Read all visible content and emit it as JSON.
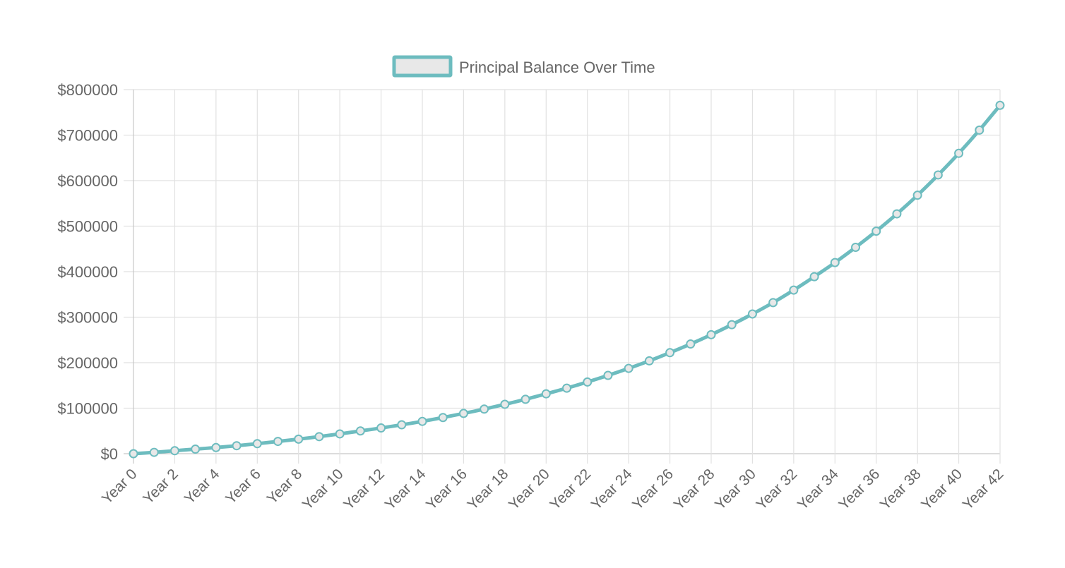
{
  "chart_data": {
    "type": "line",
    "title": "",
    "xlabel": "",
    "ylabel": "",
    "legend": {
      "position": "top-center",
      "label": "Principal Balance Over Time"
    },
    "grid": true,
    "ylim": [
      0,
      800000
    ],
    "yticks": [
      0,
      100000,
      200000,
      300000,
      400000,
      500000,
      600000,
      700000,
      800000
    ],
    "ytick_labels": [
      "$0",
      "$100000",
      "$200000",
      "$300000",
      "$400000",
      "$500000",
      "$600000",
      "$700000",
      "$800000"
    ],
    "categories": [
      "Year 0",
      "Year 1",
      "Year 2",
      "Year 3",
      "Year 4",
      "Year 5",
      "Year 6",
      "Year 7",
      "Year 8",
      "Year 9",
      "Year 10",
      "Year 11",
      "Year 12",
      "Year 13",
      "Year 14",
      "Year 15",
      "Year 16",
      "Year 17",
      "Year 18",
      "Year 19",
      "Year 20",
      "Year 21",
      "Year 22",
      "Year 23",
      "Year 24",
      "Year 25",
      "Year 26",
      "Year 27",
      "Year 28",
      "Year 29",
      "Year 30",
      "Year 31",
      "Year 32",
      "Year 33",
      "Year 34",
      "Year 35",
      "Year 36",
      "Year 37",
      "Year 38",
      "Year 39",
      "Year 40",
      "Year 41",
      "Year 42"
    ],
    "visible_xtick_labels": [
      "Year 0",
      "Year 2",
      "Year 4",
      "Year 6",
      "Year 8",
      "Year 10",
      "Year 12",
      "Year 14",
      "Year 16",
      "Year 18",
      "Year 20",
      "Year 22",
      "Year 24",
      "Year 26",
      "Year 28",
      "Year 30",
      "Year 32",
      "Year 34",
      "Year 36",
      "Year 38",
      "Year 40",
      "Year 42"
    ],
    "series": [
      {
        "name": "Principal Balance Over Time",
        "color": "#6dbcbf",
        "fill": "#e8e8e8",
        "values": [
          0,
          3000,
          6500,
          10000,
          13500,
          17500,
          22000,
          27000,
          32000,
          37500,
          43500,
          50000,
          56500,
          63500,
          71000,
          79500,
          88500,
          98000,
          108500,
          119500,
          131500,
          144000,
          157500,
          172000,
          187500,
          204000,
          222000,
          241000,
          261500,
          283500,
          307000,
          332000,
          359500,
          389000,
          420000,
          453500,
          489000,
          527000,
          568000,
          612500,
          660000,
          711000,
          765500
        ]
      }
    ]
  }
}
